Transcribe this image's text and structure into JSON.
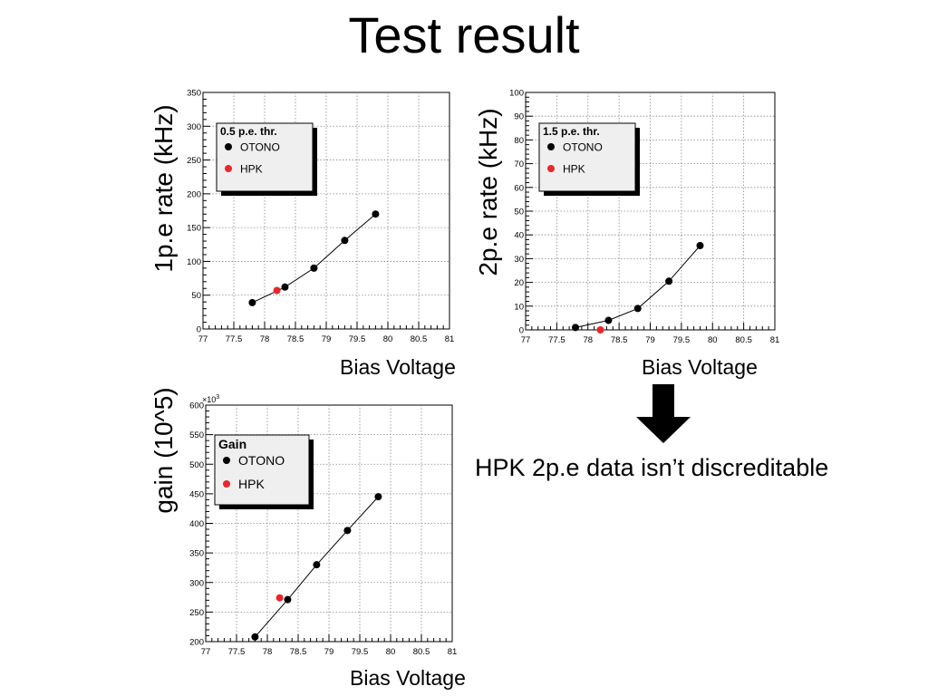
{
  "page": {
    "title": "Test result",
    "note": "HPK 2p.e data isn’t discreditable"
  },
  "chart_data": [
    {
      "id": "rate1",
      "type": "scatter",
      "ylabel": "1p.e rate (kHz)",
      "xlabel": "Bias Voltage",
      "xlim": [
        77,
        81
      ],
      "ylim": [
        0,
        350
      ],
      "xticks": [
        "77",
        "77.5",
        "78",
        "78.5",
        "79",
        "79.5",
        "80",
        "80.5",
        "81"
      ],
      "yticks": [
        "0",
        "50",
        "100",
        "150",
        "200",
        "250",
        "300",
        "350"
      ],
      "exponent": "",
      "legend": {
        "title": "0.5 p.e. thr.",
        "placement": "top-left"
      },
      "grid": true,
      "series": [
        {
          "name": "OTONO",
          "color": "#000000",
          "line": true,
          "x": [
            77.8,
            78.33,
            78.8,
            79.3,
            79.8
          ],
          "y": [
            39,
            62,
            90,
            131,
            170
          ]
        },
        {
          "name": "HPK",
          "color": "#e8262b",
          "line": false,
          "x": [
            78.2
          ],
          "y": [
            57
          ]
        }
      ]
    },
    {
      "id": "rate2",
      "type": "scatter",
      "ylabel": "2p.e rate (kHz)",
      "xlabel": "Bias Voltage",
      "xlim": [
        77,
        81
      ],
      "ylim": [
        0,
        100
      ],
      "xticks": [
        "77",
        "77.5",
        "78",
        "78.5",
        "79",
        "79.5",
        "80",
        "80.5",
        "81"
      ],
      "yticks": [
        "0",
        "10",
        "20",
        "30",
        "40",
        "50",
        "60",
        "70",
        "80",
        "90",
        "100"
      ],
      "exponent": "",
      "legend": {
        "title": "1.5 p.e. thr.",
        "placement": "top-left"
      },
      "grid": true,
      "series": [
        {
          "name": "OTONO",
          "color": "#000000",
          "line": true,
          "x": [
            77.8,
            78.33,
            78.8,
            79.3,
            79.8
          ],
          "y": [
            1,
            4,
            9,
            20.5,
            35.5
          ]
        },
        {
          "name": "HPK",
          "color": "#e8262b",
          "line": false,
          "x": [
            78.2
          ],
          "y": [
            0
          ]
        }
      ]
    },
    {
      "id": "gain",
      "type": "scatter",
      "ylabel": "gain (10^5)",
      "xlabel": "Bias Voltage",
      "xlim": [
        77,
        81
      ],
      "ylim": [
        200,
        600
      ],
      "xticks": [
        "77",
        "77.5",
        "78",
        "78.5",
        "79",
        "79.5",
        "80",
        "80.5",
        "81"
      ],
      "yticks": [
        "200",
        "250",
        "300",
        "350",
        "400",
        "450",
        "500",
        "550",
        "600"
      ],
      "exponent": "×10",
      "exponent_power": "3",
      "legend": {
        "title": "Gain",
        "placement": "top-left"
      },
      "grid": true,
      "series": [
        {
          "name": "OTONO",
          "color": "#000000",
          "line": true,
          "x": [
            77.8,
            78.33,
            78.8,
            79.3,
            79.8
          ],
          "y": [
            208,
            271,
            330,
            388,
            445
          ]
        },
        {
          "name": "HPK",
          "color": "#e8262b",
          "line": false,
          "x": [
            78.2
          ],
          "y": [
            274
          ]
        }
      ]
    }
  ]
}
